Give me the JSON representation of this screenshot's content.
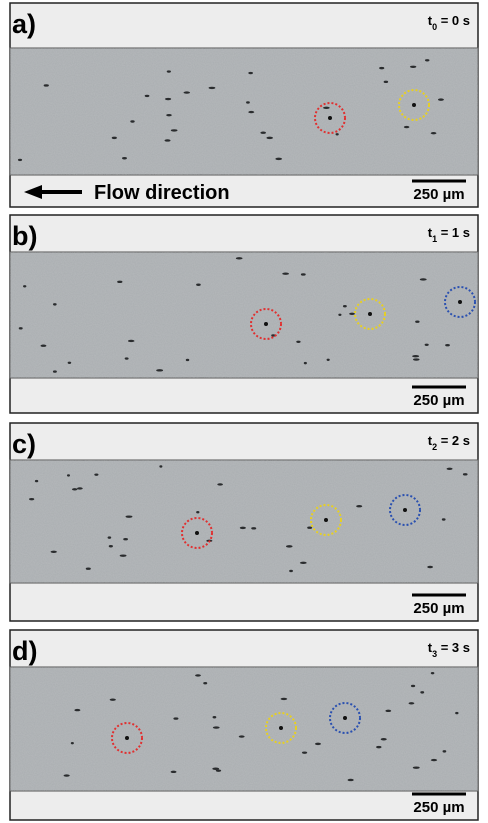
{
  "panels": [
    {
      "label": "a)",
      "time": {
        "symbol": "t",
        "sub": "0",
        "rest": " = 0 s"
      },
      "scale": "250 µm",
      "flow": "Flow direction"
    },
    {
      "label": "b)",
      "time": {
        "symbol": "t",
        "sub": "1",
        "rest": " = 1 s"
      },
      "scale": "250 µm"
    },
    {
      "label": "c)",
      "time": {
        "symbol": "t",
        "sub": "2",
        "rest": " = 2 s"
      },
      "scale": "250 µm"
    },
    {
      "label": "d)",
      "time": {
        "symbol": "t",
        "sub": "3",
        "rest": " = 3 s"
      },
      "scale": "250 µm"
    }
  ]
}
